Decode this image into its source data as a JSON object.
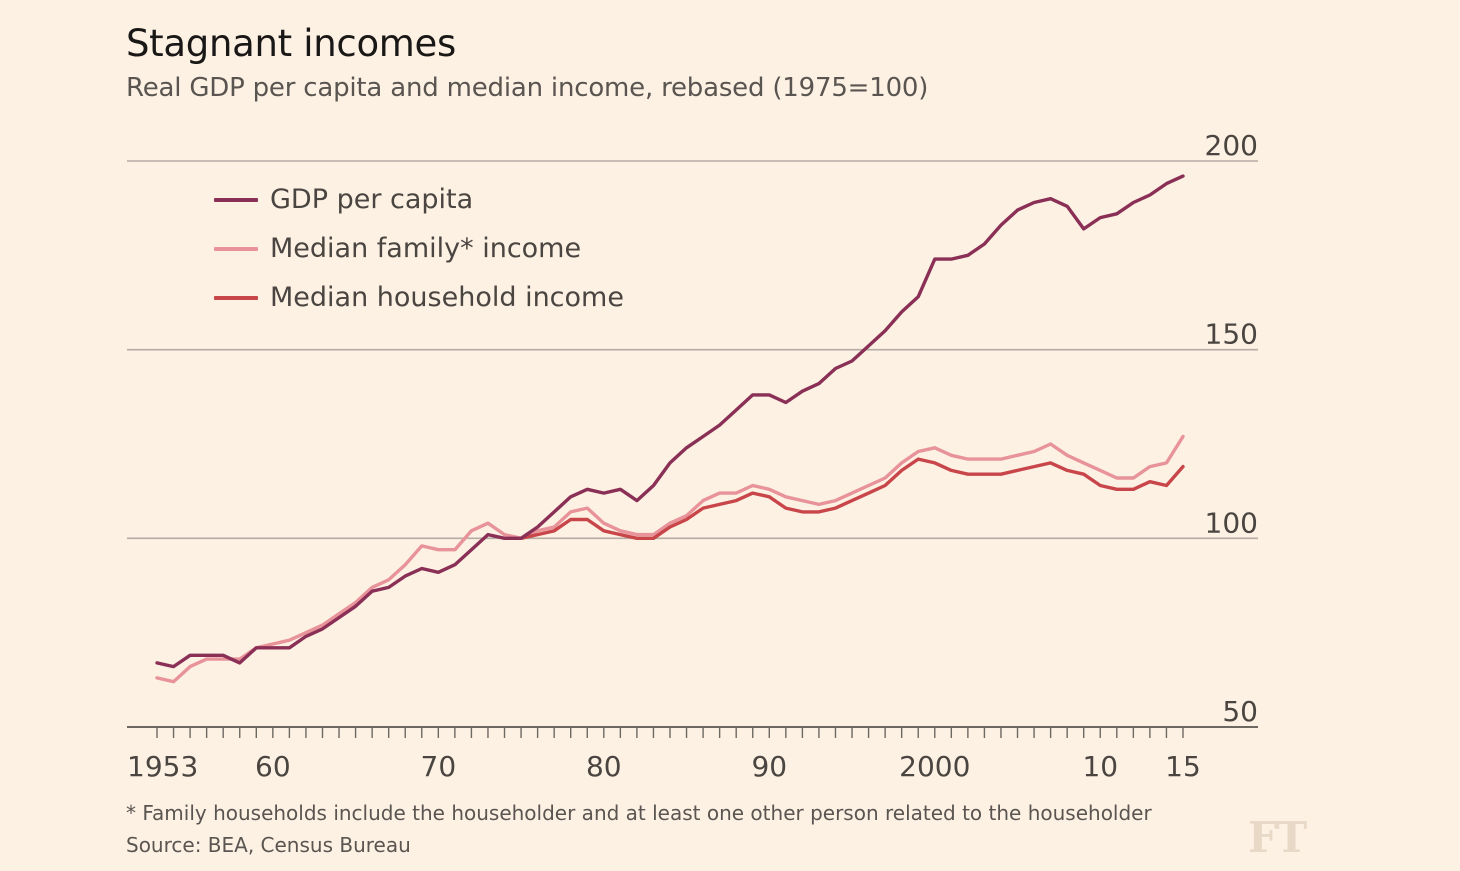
{
  "title": "Stagnant incomes",
  "subtitle": "Real GDP per capita and median income, rebased (1975=100)",
  "footnote": "* Family households include the householder and at least one other person related to the householder",
  "source": "Source: BEA, Census Bureau",
  "logo": "FT",
  "colors": {
    "gdp": "#8a2f55",
    "family": "#e8929a",
    "household": "#c8454a",
    "grid": "#b5aca4",
    "axis": "#6e6862"
  },
  "chart_data": {
    "type": "line",
    "ylim": [
      50,
      200
    ],
    "yticks": [
      50,
      100,
      150,
      200
    ],
    "ytick_labels": [
      "50",
      "100",
      "150",
      "200"
    ],
    "xlim": [
      1953,
      2015
    ],
    "xticks": [
      1953,
      1960,
      1970,
      1980,
      1990,
      2000,
      2010,
      2015
    ],
    "xtick_labels": [
      "1953",
      "60",
      "70",
      "80",
      "90",
      "2000",
      "10",
      "15"
    ],
    "x": [
      1953,
      1954,
      1955,
      1956,
      1957,
      1958,
      1959,
      1960,
      1961,
      1962,
      1963,
      1964,
      1965,
      1966,
      1967,
      1968,
      1969,
      1970,
      1971,
      1972,
      1973,
      1974,
      1975,
      1976,
      1977,
      1978,
      1979,
      1980,
      1981,
      1982,
      1983,
      1984,
      1985,
      1986,
      1987,
      1988,
      1989,
      1990,
      1991,
      1992,
      1993,
      1994,
      1995,
      1996,
      1997,
      1998,
      1999,
      2000,
      2001,
      2002,
      2003,
      2004,
      2005,
      2006,
      2007,
      2008,
      2009,
      2010,
      2011,
      2012,
      2013,
      2014,
      2015
    ],
    "series": [
      {
        "key": "gdp",
        "name": "GDP per capita",
        "values": [
          67,
          66,
          69,
          69,
          69,
          67,
          71,
          71,
          71,
          74,
          76,
          79,
          82,
          86,
          87,
          90,
          92,
          91,
          93,
          97,
          101,
          100,
          100,
          103,
          107,
          111,
          113,
          112,
          113,
          110,
          114,
          120,
          124,
          127,
          130,
          134,
          138,
          138,
          136,
          139,
          141,
          145,
          147,
          151,
          155,
          160,
          164,
          174,
          174,
          175,
          178,
          183,
          187,
          189,
          190,
          188,
          182,
          185,
          186,
          189,
          191,
          194,
          196
        ]
      },
      {
        "key": "family",
        "name": "Median family* income",
        "values": [
          63,
          62,
          66,
          68,
          68,
          68,
          71,
          72,
          73,
          75,
          77,
          80,
          83,
          87,
          89,
          93,
          98,
          97,
          97,
          102,
          104,
          101,
          100,
          102,
          103,
          107,
          108,
          104,
          102,
          101,
          101,
          104,
          106,
          110,
          112,
          112,
          114,
          113,
          111,
          110,
          109,
          110,
          112,
          114,
          116,
          120,
          123,
          124,
          122,
          121,
          121,
          121,
          122,
          123,
          125,
          122,
          120,
          118,
          116,
          116,
          119,
          120,
          127
        ]
      },
      {
        "key": "household",
        "name": "Median household income",
        "values": [
          null,
          null,
          null,
          null,
          null,
          null,
          null,
          null,
          null,
          null,
          null,
          null,
          null,
          null,
          null,
          null,
          null,
          null,
          null,
          null,
          null,
          null,
          100,
          101,
          102,
          105,
          105,
          102,
          101,
          100,
          100,
          103,
          105,
          108,
          109,
          110,
          112,
          111,
          108,
          107,
          107,
          108,
          110,
          112,
          114,
          118,
          121,
          120,
          118,
          117,
          117,
          117,
          118,
          119,
          120,
          118,
          117,
          114,
          113,
          113,
          115,
          114,
          119
        ]
      }
    ]
  }
}
